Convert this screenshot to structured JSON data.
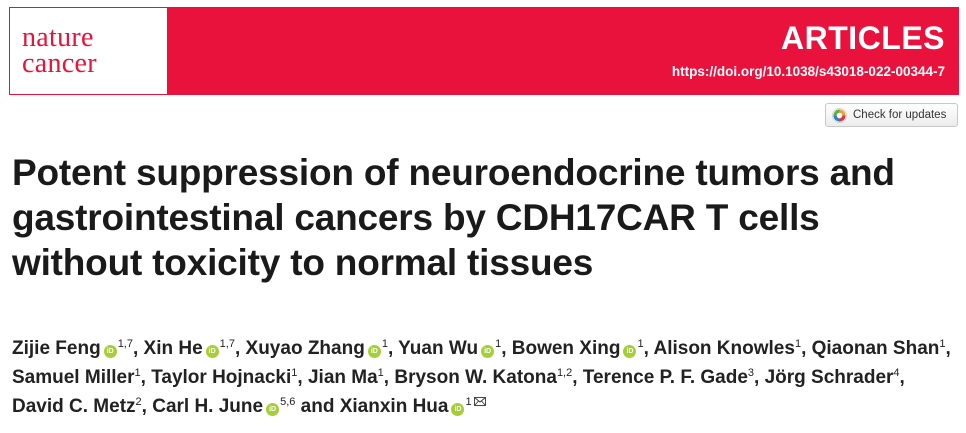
{
  "journal": {
    "logo_line1": "nature",
    "logo_line2": "cancer",
    "brand_color": "#e8123c"
  },
  "header": {
    "section": "ARTICLES",
    "doi": "https://doi.org/10.1038/s43018-022-00344-7"
  },
  "check_updates": {
    "label": "Check for updates",
    "icon": "crossmark-icon"
  },
  "title": "Potent suppression of neuroendocrine tumors and gastrointestinal cancers by CDH17CAR T cells without toxicity to normal tissues",
  "orcid_icon": {
    "text": "iD",
    "color": "#a6ce39"
  },
  "authors": [
    {
      "name": "Zijie Feng",
      "orcid": true,
      "aff": "1,7"
    },
    {
      "name": "Xin He",
      "orcid": true,
      "aff": "1,7"
    },
    {
      "name": "Xuyao Zhang",
      "orcid": true,
      "aff": "1"
    },
    {
      "name": "Yuan Wu",
      "orcid": true,
      "aff": "1"
    },
    {
      "name": "Bowen Xing",
      "orcid": true,
      "aff": "1"
    },
    {
      "name": "Alison Knowles",
      "orcid": false,
      "aff": "1"
    },
    {
      "name": "Qiaonan Shan",
      "orcid": false,
      "aff": "1"
    },
    {
      "name": "Samuel Miller",
      "orcid": false,
      "aff": "1"
    },
    {
      "name": "Taylor Hojnacki",
      "orcid": false,
      "aff": "1"
    },
    {
      "name": "Jian Ma",
      "orcid": false,
      "aff": "1"
    },
    {
      "name": "Bryson W. Katona",
      "orcid": false,
      "aff": "1,2"
    },
    {
      "name": "Terence P. F. Gade",
      "orcid": false,
      "aff": "3"
    },
    {
      "name": "Jörg Schrader",
      "orcid": false,
      "aff": "4"
    },
    {
      "name": "David C. Metz",
      "orcid": false,
      "aff": "2"
    },
    {
      "name": "Carl H. June",
      "orcid": true,
      "aff": "5,6"
    },
    {
      "name": "Xianxin Hua",
      "orcid": true,
      "aff": "1",
      "corresponding": true
    }
  ],
  "author_joiner": "and"
}
